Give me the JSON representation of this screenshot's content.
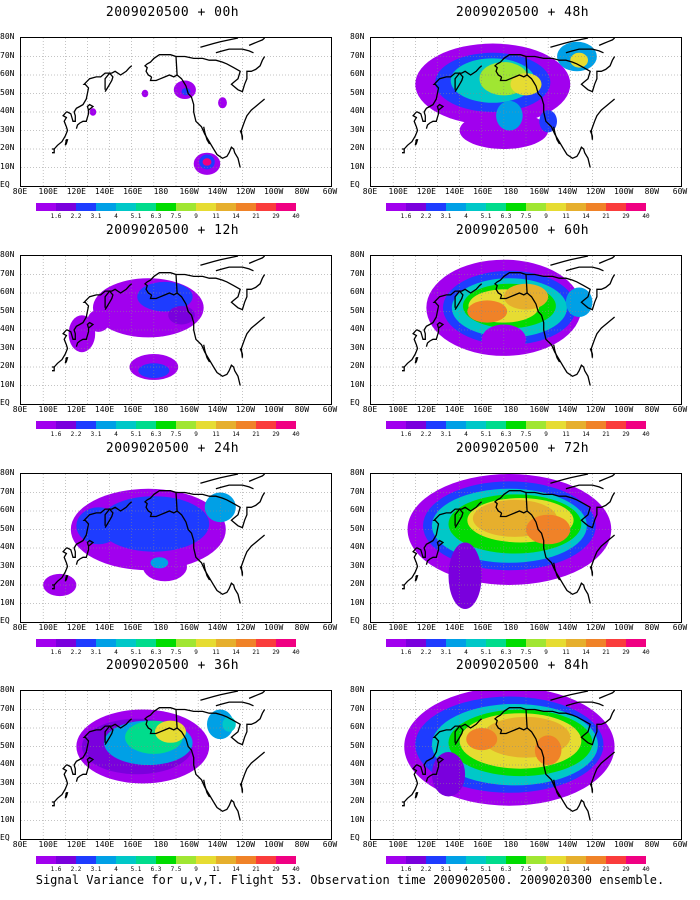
{
  "panels": [
    {
      "title": "2009020500 + 00h"
    },
    {
      "title": "2009020500 + 48h"
    },
    {
      "title": "2009020500 + 12h"
    },
    {
      "title": "2009020500 + 60h"
    },
    {
      "title": "2009020500 + 24h"
    },
    {
      "title": "2009020500 + 72h"
    },
    {
      "title": "2009020500 + 36h"
    },
    {
      "title": "2009020500 + 84h"
    }
  ],
  "axes": {
    "lat_labels": [
      "80N",
      "70N",
      "60N",
      "50N",
      "40N",
      "30N",
      "20N",
      "10N",
      "EQ"
    ],
    "lon_labels": [
      "80E",
      "100E",
      "120E",
      "140E",
      "160E",
      "180",
      "160W",
      "140W",
      "120W",
      "100W",
      "80W",
      "60W"
    ]
  },
  "colorbar": {
    "labels": [
      "1.6",
      "2.2",
      "3.1",
      "4",
      "5.1",
      "6.3",
      "7.5",
      "9",
      "11",
      "14",
      "21",
      "29",
      "40"
    ],
    "colors": [
      "#a100ee",
      "#7a00dd",
      "#1e3cff",
      "#00a0e6",
      "#00c8c8",
      "#00dc8c",
      "#00dc00",
      "#a0e632",
      "#e6dc32",
      "#e6af2d",
      "#f08228",
      "#fa3c3c",
      "#f00082"
    ]
  },
  "footer": "Signal Variance for u,v,T. Flight 53. Observation time 2009020500. 2009020300 ensemble."
}
